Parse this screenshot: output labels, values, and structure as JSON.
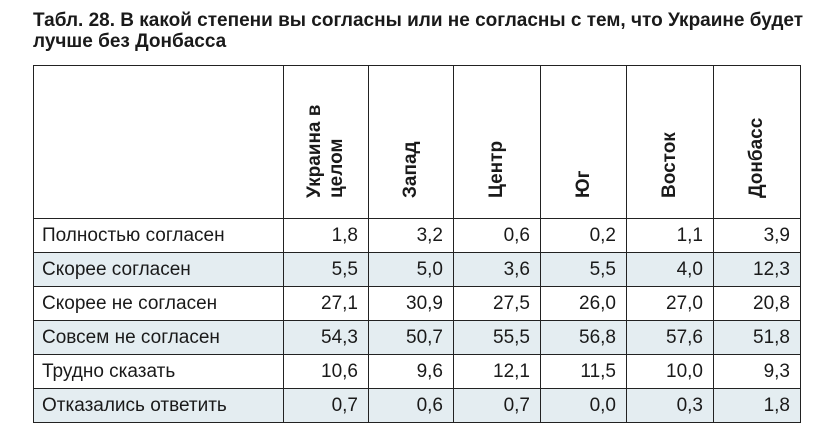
{
  "title": "Табл. 28. В какой степени вы согласны или не согласны с тем, что Украине будет лучше без Донбасса",
  "table": {
    "columns": [
      "Украина в целом",
      "Запад",
      "Центр",
      "Юг",
      "Восток",
      "Донбасс"
    ],
    "rows": [
      [
        "Полностью согласен",
        "1,8",
        "3,2",
        "0,6",
        "0,2",
        "1,1",
        "3,9"
      ],
      [
        "Скорее согласен",
        "5,5",
        "5,0",
        "3,6",
        "5,5",
        "4,0",
        "12,3"
      ],
      [
        "Скорее не согласен",
        "27,1",
        "30,9",
        "27,5",
        "26,0",
        "27,0",
        "20,8"
      ],
      [
        "Совсем не согласен",
        "54,3",
        "50,7",
        "55,5",
        "56,8",
        "57,6",
        "51,8"
      ],
      [
        "Трудно сказать",
        "10,6",
        "9,6",
        "12,1",
        "11,5",
        "10,0",
        "9,3"
      ],
      [
        "Отказались ответить",
        "0,7",
        "0,6",
        "0,7",
        "0,0",
        "0,3",
        "1,8"
      ]
    ]
  }
}
